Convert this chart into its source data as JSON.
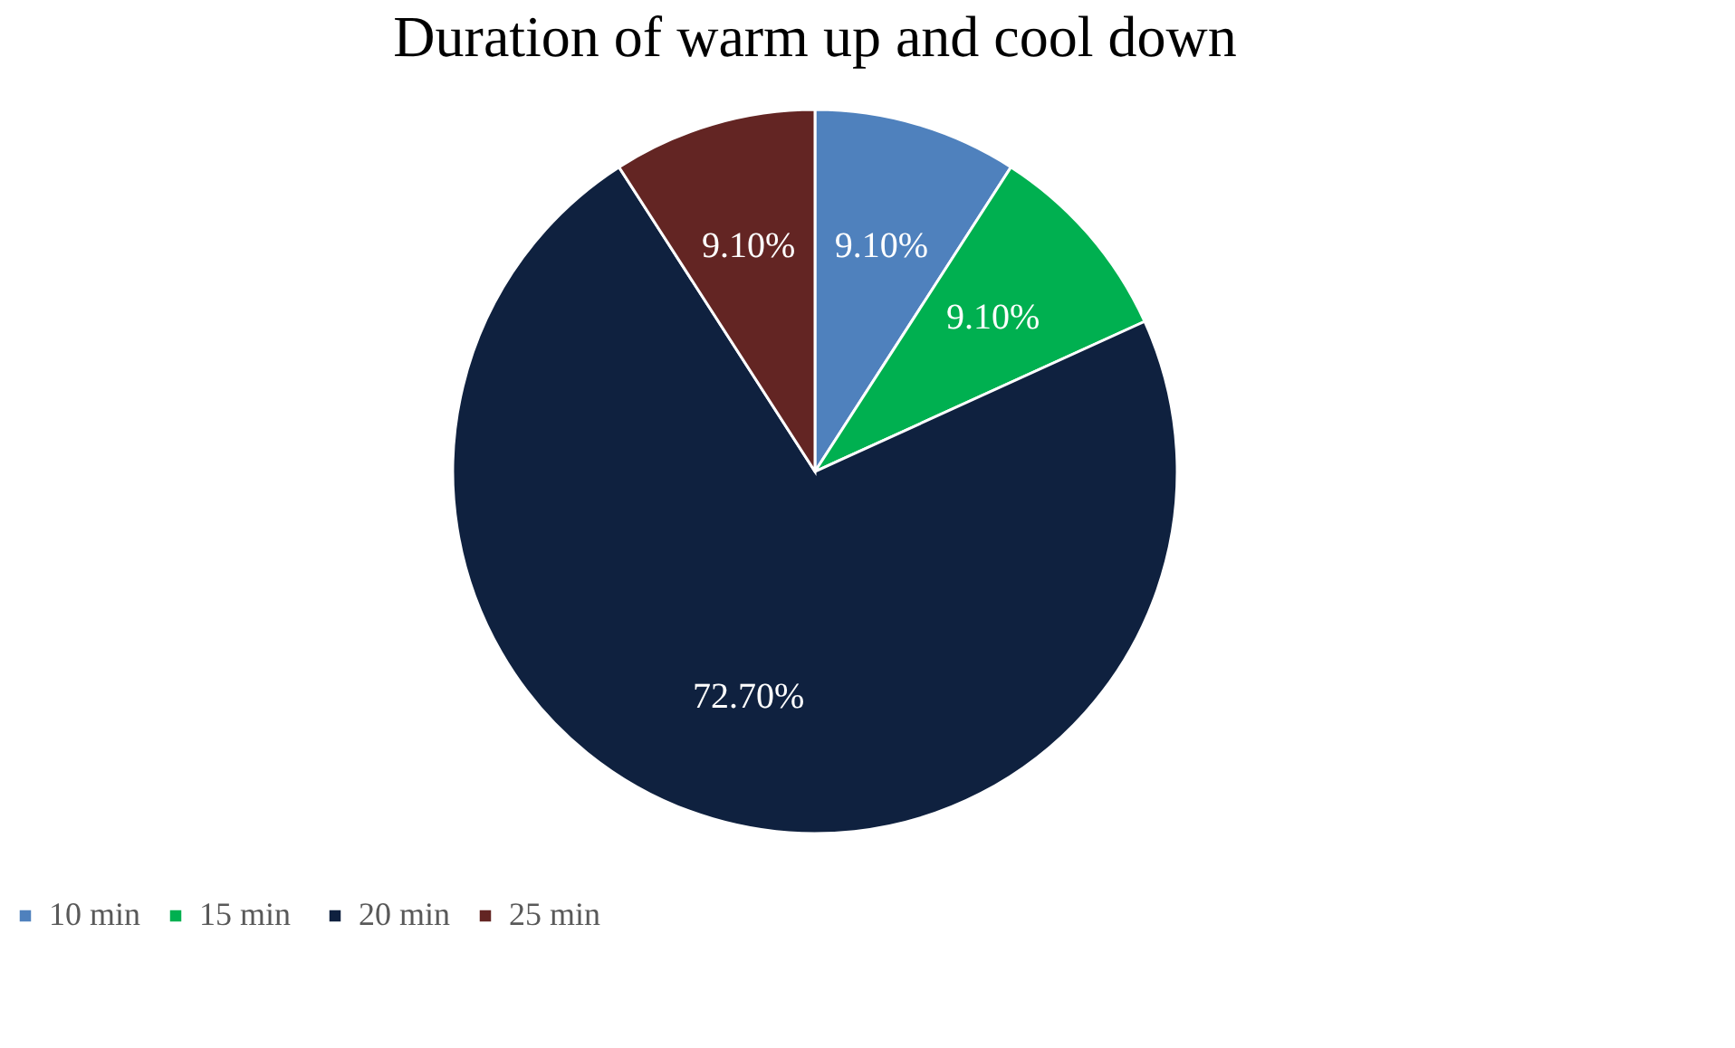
{
  "chart_data": {
    "type": "pie",
    "title": "Duration of warm up and cool down",
    "categories": [
      "10 min",
      "15  min",
      "20 min",
      "25 min"
    ],
    "values": [
      9.1,
      9.1,
      72.7,
      9.1
    ],
    "colors": [
      "#4f81bd",
      "#00b050",
      "#0f213f",
      "#632523"
    ],
    "value_labels": [
      "9.10%",
      "9.10%",
      "72.70%",
      "9.10%"
    ],
    "legend": "bottom"
  }
}
